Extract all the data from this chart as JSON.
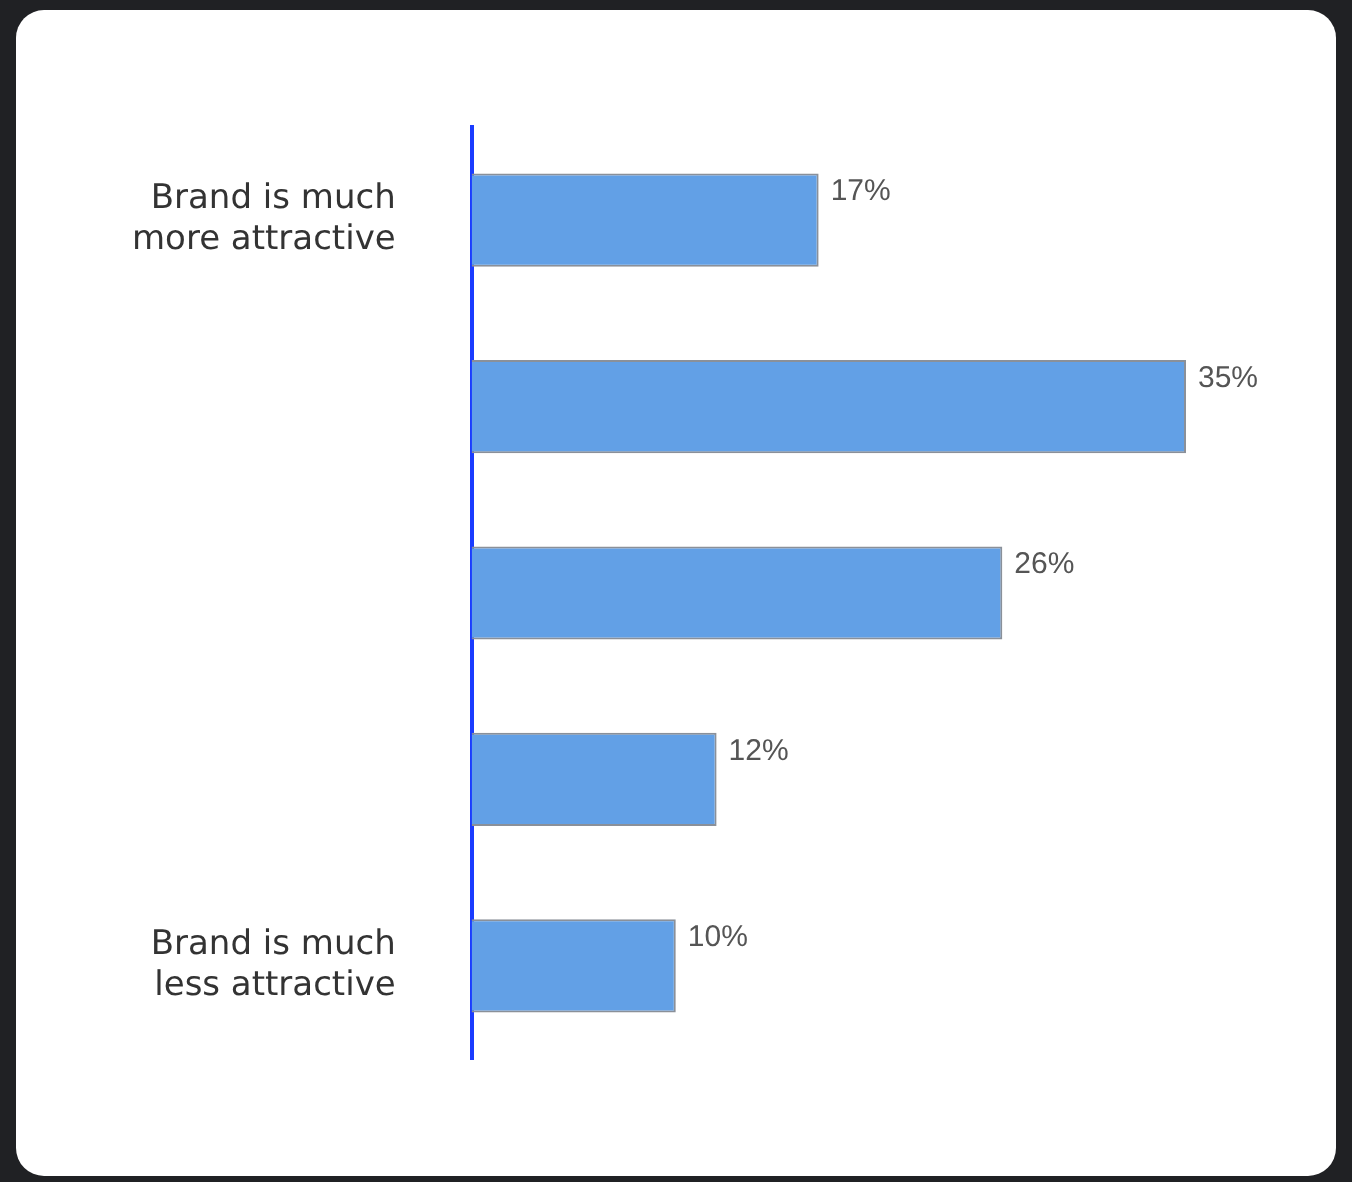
{
  "chart_data": {
    "type": "bar",
    "orientation": "horizontal",
    "categories": [
      "Brand is much more attractive",
      null,
      null,
      null,
      "Brand is much less attractive"
    ],
    "values": [
      17,
      35,
      26,
      12,
      10
    ],
    "value_labels": [
      "17%",
      "35%",
      "26%",
      "12%",
      "10%"
    ],
    "color": "#62a0e6",
    "legend": false
  }
}
